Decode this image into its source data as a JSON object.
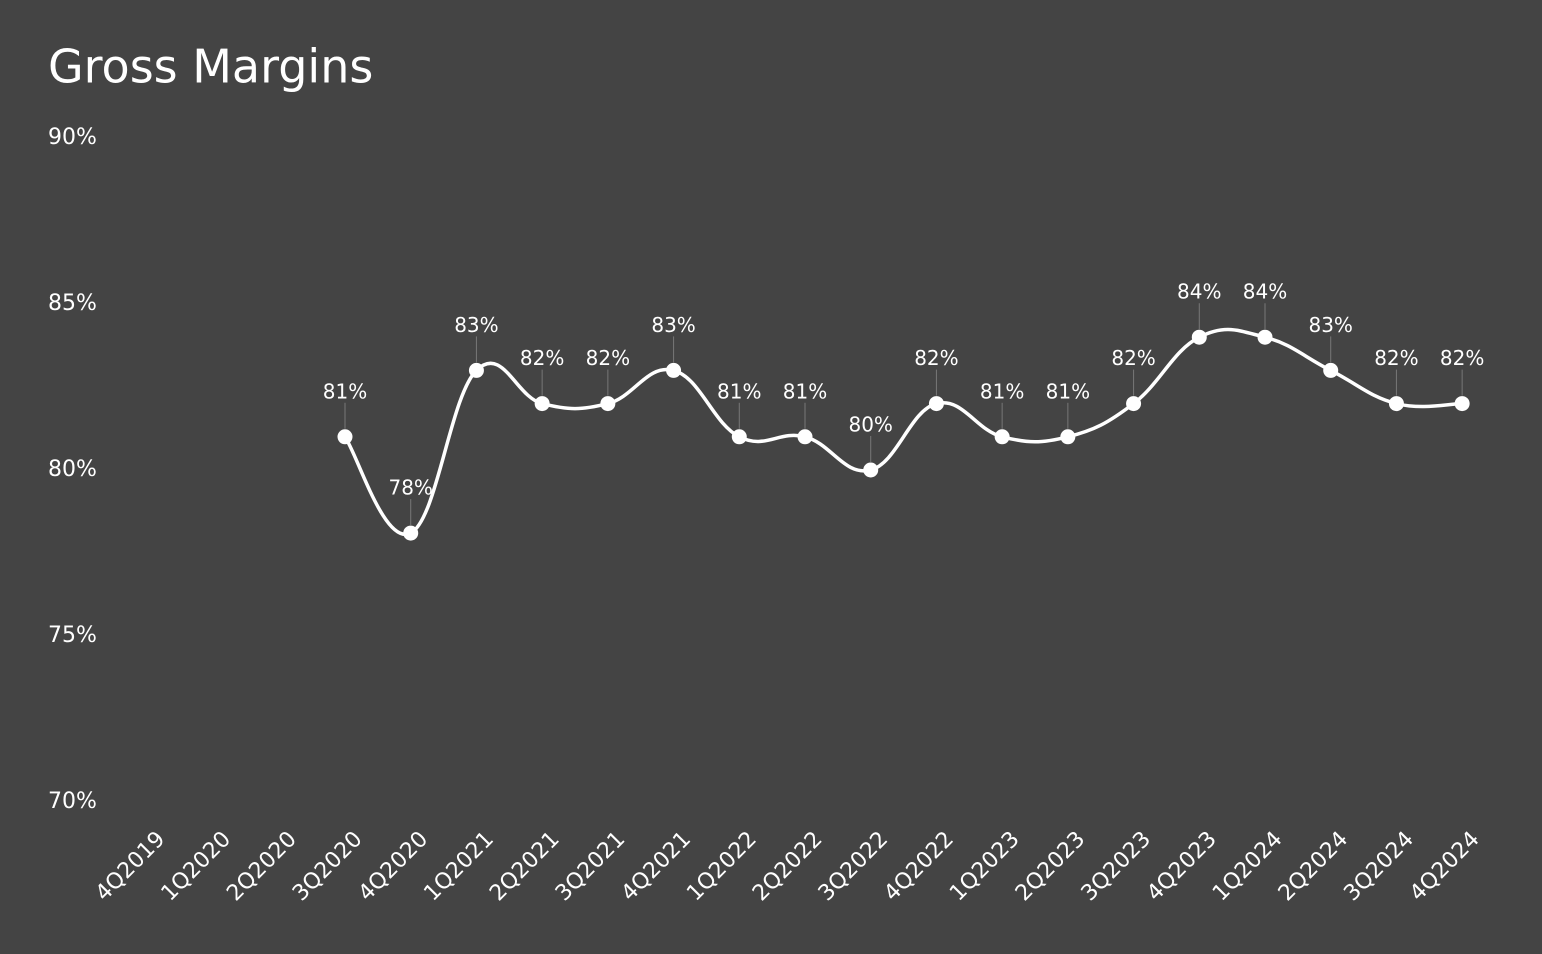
{
  "chart_data": {
    "type": "line",
    "title": "Gross Margins",
    "categories": [
      "4Q2019",
      "1Q2020",
      "2Q2020",
      "3Q2020",
      "4Q2020",
      "1Q2021",
      "2Q2021",
      "3Q2021",
      "4Q2021",
      "1Q2022",
      "2Q2022",
      "3Q2022",
      "4Q2022",
      "1Q2023",
      "2Q2023",
      "3Q2023",
      "4Q2023",
      "1Q2024",
      "2Q2024",
      "3Q2024",
      "4Q2024"
    ],
    "series": [
      {
        "name": "Gross Margin",
        "color": "#ffffff",
        "values": [
          null,
          null,
          null,
          81,
          78.1,
          83,
          82,
          82,
          83,
          81,
          81,
          80,
          82,
          81,
          81,
          82,
          84,
          84,
          83,
          82,
          82
        ],
        "value_labels": [
          null,
          null,
          null,
          "81%",
          "78%",
          "83%",
          "82%",
          "82%",
          "83%",
          "81%",
          "81%",
          "80%",
          "82%",
          "81%",
          "81%",
          "82%",
          "84%",
          "84%",
          "83%",
          "82%",
          "82%"
        ]
      }
    ],
    "ylim": [
      70,
      90
    ],
    "yticks": [
      {
        "value": 70,
        "label": "70%"
      },
      {
        "value": 75,
        "label": "75%"
      },
      {
        "value": 80,
        "label": "80%"
      },
      {
        "value": 85,
        "label": "85%"
      },
      {
        "value": 90,
        "label": "90%"
      }
    ],
    "grid": false
  }
}
